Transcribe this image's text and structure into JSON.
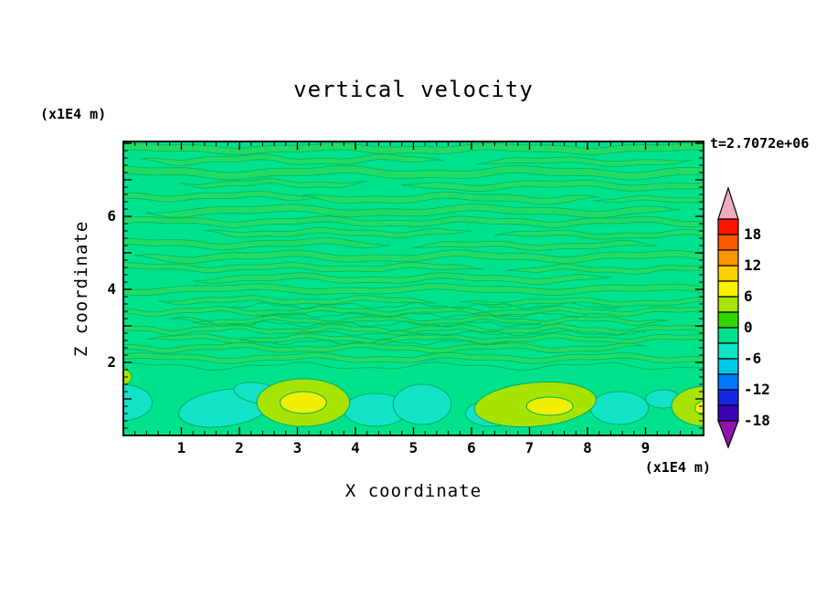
{
  "chart_data": {
    "type": "contour",
    "title": "vertical velocity",
    "xlabel": "X coordinate",
    "ylabel": "Z coordinate",
    "x_unit_label": "(x1E4 m)",
    "y_unit_label": "(x1E4 m)",
    "time_annotation": "t=2.7072e+06",
    "x_range": [
      0,
      10
    ],
    "y_range": [
      0,
      8.05
    ],
    "x_ticks_labeled": [
      1,
      2,
      3,
      4,
      5,
      6,
      7,
      8,
      9
    ],
    "y_ticks_labeled": [
      2,
      4,
      6
    ],
    "tick_minor_step": 0.2,
    "tick_major_step": 1,
    "grid": false,
    "contour_interval": 3,
    "field_notes": "Weak near-zero vertical velocity (-3..3) in thin wavy horizontal bands above z=2; stronger convective cells (up to ~7 updraft, ~-5 downdraft) near the bottom boundary below z=1.9.",
    "palette": {
      "background": "#00E18C",
      "stripe": "#21DB66",
      "stripe_line": "#00B95B",
      "blob_line": "#00AE62",
      "cyan": "#12E3C6",
      "yellow_green": "#A6E400",
      "yellow": "#F2EE00",
      "frame": "#000000",
      "text": "#000000"
    },
    "colorbar": {
      "orientation": "vertical",
      "position": "right",
      "tick_labels": [
        18,
        12,
        6,
        0,
        -6,
        -12,
        -18
      ],
      "over_arrow_color": "#F0ACBE",
      "under_arrow_color": "#9013AE",
      "segments_top_to_bottom": [
        {
          "range": [
            18,
            21
          ],
          "color": "#FF1400"
        },
        {
          "range": [
            15,
            18
          ],
          "color": "#FF5A00"
        },
        {
          "range": [
            12,
            15
          ],
          "color": "#FF9600"
        },
        {
          "range": [
            9,
            12
          ],
          "color": "#FFCD00"
        },
        {
          "range": [
            6,
            9
          ],
          "color": "#FAF000"
        },
        {
          "range": [
            3,
            6
          ],
          "color": "#A6E400"
        },
        {
          "range": [
            0,
            3
          ],
          "color": "#32D700"
        },
        {
          "range": [
            -3,
            0
          ],
          "color": "#00E18C"
        },
        {
          "range": [
            -6,
            -3
          ],
          "color": "#12E3C6"
        },
        {
          "range": [
            -9,
            -6
          ],
          "color": "#00C8E6"
        },
        {
          "range": [
            -12,
            -9
          ],
          "color": "#0078FF"
        },
        {
          "range": [
            -15,
            -12
          ],
          "color": "#1428E1"
        },
        {
          "range": [
            -18,
            -15
          ],
          "color": "#3C00B4"
        }
      ]
    },
    "stripes": [
      {
        "x0": 0,
        "x1": 10,
        "y": 7.85,
        "t": 0.18,
        "a": 0.05,
        "l": 3.0,
        "p": 0.5
      },
      {
        "x0": 0.3,
        "x1": 5.5,
        "y": 7.55,
        "t": 0.15,
        "a": 0.06,
        "l": 2.4,
        "p": 2.1
      },
      {
        "x0": 6.1,
        "x1": 9.8,
        "y": 7.5,
        "t": 0.14,
        "a": 0.05,
        "l": 2.8,
        "p": 4.0
      },
      {
        "x0": 0,
        "x1": 10,
        "y": 7.2,
        "t": 0.2,
        "a": 0.07,
        "l": 3.4,
        "p": 1.2
      },
      {
        "x0": 1.0,
        "x1": 4.2,
        "y": 6.9,
        "t": 0.13,
        "a": 0.05,
        "l": 2.0,
        "p": 0.3
      },
      {
        "x0": 4.8,
        "x1": 10,
        "y": 6.85,
        "t": 0.16,
        "a": 0.06,
        "l": 3.1,
        "p": 5.2
      },
      {
        "x0": 0,
        "x1": 3.4,
        "y": 6.55,
        "t": 0.15,
        "a": 0.05,
        "l": 2.6,
        "p": 2.8
      },
      {
        "x0": 3.1,
        "x1": 8.2,
        "y": 6.5,
        "t": 0.17,
        "a": 0.06,
        "l": 2.9,
        "p": 1.7
      },
      {
        "x0": 8.1,
        "x1": 10,
        "y": 6.45,
        "t": 0.12,
        "a": 0.04,
        "l": 2.2,
        "p": 0.9
      },
      {
        "x0": 0.4,
        "x1": 9.6,
        "y": 6.15,
        "t": 0.18,
        "a": 0.07,
        "l": 3.6,
        "p": 3.3
      },
      {
        "x0": 0,
        "x1": 10,
        "y": 5.85,
        "t": 0.15,
        "a": 0.06,
        "l": 2.7,
        "p": 0.1
      },
      {
        "x0": 1.4,
        "x1": 6.0,
        "y": 5.55,
        "t": 0.14,
        "a": 0.05,
        "l": 2.3,
        "p": 4.6
      },
      {
        "x0": 6.4,
        "x1": 10,
        "y": 5.5,
        "t": 0.13,
        "a": 0.05,
        "l": 2.5,
        "p": 2.2
      },
      {
        "x0": 0,
        "x1": 4.6,
        "y": 5.25,
        "t": 0.16,
        "a": 0.06,
        "l": 3.0,
        "p": 1.0
      },
      {
        "x0": 5.0,
        "x1": 9.2,
        "y": 5.2,
        "t": 0.14,
        "a": 0.05,
        "l": 2.6,
        "p": 5.8
      },
      {
        "x0": 0.2,
        "x1": 10,
        "y": 4.9,
        "t": 0.17,
        "a": 0.07,
        "l": 3.2,
        "p": 2.5
      },
      {
        "x0": 0,
        "x1": 6.2,
        "y": 4.6,
        "t": 0.14,
        "a": 0.05,
        "l": 2.4,
        "p": 0.7
      },
      {
        "x0": 6.6,
        "x1": 10,
        "y": 4.55,
        "t": 0.13,
        "a": 0.05,
        "l": 2.1,
        "p": 3.9
      },
      {
        "x0": 1.2,
        "x1": 8.4,
        "y": 4.3,
        "t": 0.15,
        "a": 0.06,
        "l": 2.8,
        "p": 1.4
      },
      {
        "x0": 0,
        "x1": 10,
        "y": 4.0,
        "t": 0.16,
        "a": 0.06,
        "l": 3.5,
        "p": 4.2
      },
      {
        "x0": 0.6,
        "x1": 5.4,
        "y": 3.7,
        "t": 0.13,
        "a": 0.05,
        "l": 2.2,
        "p": 2.0
      },
      {
        "x0": 5.8,
        "x1": 10,
        "y": 3.65,
        "t": 0.12,
        "a": 0.05,
        "l": 2.4,
        "p": 0.4
      },
      {
        "x0": 0,
        "x1": 10,
        "y": 3.4,
        "t": 0.12,
        "a": 0.06,
        "l": 2.0,
        "p": 3.1
      },
      {
        "x0": 0.8,
        "x1": 9.4,
        "y": 3.15,
        "t": 0.11,
        "a": 0.06,
        "l": 1.8,
        "p": 5.0
      },
      {
        "x0": 0,
        "x1": 10,
        "y": 2.9,
        "t": 0.12,
        "a": 0.07,
        "l": 1.9,
        "p": 1.8
      },
      {
        "x0": 0.4,
        "x1": 10,
        "y": 2.65,
        "t": 0.12,
        "a": 0.06,
        "l": 2.1,
        "p": 4.4
      },
      {
        "x0": 0,
        "x1": 9.0,
        "y": 2.4,
        "t": 0.13,
        "a": 0.06,
        "l": 2.3,
        "p": 2.7
      },
      {
        "x0": 0,
        "x1": 10,
        "y": 2.12,
        "t": 0.14,
        "a": 0.06,
        "l": 2.6,
        "p": 0.2
      }
    ],
    "contour_lines": [
      {
        "x0": 0,
        "x1": 10,
        "y": 1.9,
        "a": 0.08,
        "l": 2.6,
        "p": 0.8
      },
      {
        "x0": 1.8,
        "x1": 8.6,
        "y": 3.55,
        "a": 0.06,
        "l": 1.3,
        "p": 2.2
      },
      {
        "x0": 2.4,
        "x1": 8.0,
        "y": 3.3,
        "a": 0.05,
        "l": 1.1,
        "p": 4.1
      },
      {
        "x0": 1.2,
        "x1": 7.2,
        "y": 3.05,
        "a": 0.06,
        "l": 1.2,
        "p": 1.0
      },
      {
        "x0": 3.0,
        "x1": 9.0,
        "y": 2.8,
        "a": 0.05,
        "l": 1.4,
        "p": 5.3
      },
      {
        "x0": 2.0,
        "x1": 6.6,
        "y": 2.55,
        "a": 0.05,
        "l": 1.2,
        "p": 3.0
      }
    ],
    "blobs": [
      {
        "x": -0.05,
        "y": 0.9,
        "rx": 0.55,
        "ry": 0.5,
        "color": "cyan",
        "value": -4
      },
      {
        "x": 1.75,
        "y": 0.75,
        "rx": 0.8,
        "ry": 0.5,
        "rot": -8,
        "color": "cyan",
        "value": -4
      },
      {
        "x": 2.35,
        "y": 1.15,
        "rx": 0.45,
        "ry": 0.28,
        "rot": 10,
        "color": "cyan",
        "value": -4
      },
      {
        "x": 4.35,
        "y": 0.7,
        "rx": 0.55,
        "ry": 0.45,
        "color": "cyan",
        "value": -4
      },
      {
        "x": 5.15,
        "y": 0.85,
        "rx": 0.5,
        "ry": 0.55,
        "color": "cyan",
        "value": -4
      },
      {
        "x": 6.35,
        "y": 0.6,
        "rx": 0.45,
        "ry": 0.35,
        "color": "cyan",
        "value": -4
      },
      {
        "x": 8.55,
        "y": 0.75,
        "rx": 0.5,
        "ry": 0.45,
        "color": "cyan",
        "value": -4
      },
      {
        "x": 9.3,
        "y": 1.0,
        "rx": 0.3,
        "ry": 0.25,
        "color": "cyan",
        "value": -4
      },
      {
        "x": 0.02,
        "y": 1.6,
        "rx": 0.12,
        "ry": 0.2,
        "color": "yellow_green",
        "value": 4
      },
      {
        "x": 3.1,
        "y": 0.9,
        "rx": 0.8,
        "ry": 0.65,
        "color": "yellow_green",
        "value": 4
      },
      {
        "x": 7.1,
        "y": 0.85,
        "rx": 1.05,
        "ry": 0.6,
        "rot": -5,
        "color": "yellow_green",
        "value": 4
      },
      {
        "x": 10.05,
        "y": 0.8,
        "rx": 0.6,
        "ry": 0.55,
        "color": "yellow_green",
        "value": 4
      },
      {
        "x": 3.1,
        "y": 0.9,
        "rx": 0.4,
        "ry": 0.3,
        "color": "yellow",
        "value": 7
      },
      {
        "x": 7.35,
        "y": 0.8,
        "rx": 0.4,
        "ry": 0.25,
        "color": "yellow",
        "value": 7
      },
      {
        "x": 10.1,
        "y": 0.75,
        "rx": 0.25,
        "ry": 0.22,
        "color": "yellow",
        "value": 7
      }
    ]
  }
}
